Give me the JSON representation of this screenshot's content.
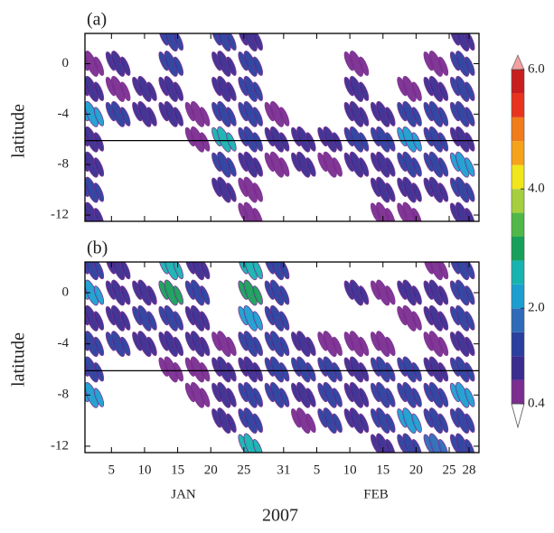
{
  "chart_data": {
    "type": "contour",
    "xlabel": "2007",
    "ylabel": "latitude",
    "xlim": [
      1,
      60.5
    ],
    "ylim": [
      -12.5,
      2.4
    ],
    "xticks": [
      5,
      10,
      15,
      20,
      25,
      31,
      {
        "value": 36,
        "label": "5"
      },
      {
        "value": 41,
        "label": "10"
      },
      {
        "value": 46,
        "label": "15"
      },
      {
        "value": 51,
        "label": "20"
      },
      {
        "value": 56,
        "label": "25"
      },
      {
        "value": 59,
        "label": "28"
      }
    ],
    "yticks": [
      0,
      -4,
      -8,
      -12
    ],
    "months": [
      "JAN",
      "FEB"
    ],
    "hline": -6.1,
    "x_centers": [
      2,
      6,
      10,
      14,
      18,
      22,
      26,
      30,
      34,
      38,
      42,
      46,
      50,
      54,
      58
    ],
    "y_centers": [
      2,
      0,
      -2,
      -4,
      -6,
      -8,
      -10,
      -12
    ],
    "panels": [
      {
        "label": "(a)",
        "z": [
          [
            0,
            0,
            0,
            1.5,
            0,
            1.5,
            1.0,
            0,
            0,
            0,
            0,
            0,
            0,
            0,
            1.0
          ],
          [
            0.5,
            0.8,
            0,
            1.5,
            0,
            1.0,
            1.2,
            0,
            0,
            0,
            0.6,
            0,
            0,
            0.6,
            1.5
          ],
          [
            1.0,
            0.6,
            0.8,
            1.0,
            0,
            0.8,
            1.5,
            0,
            0,
            0,
            0.8,
            0,
            0.6,
            0.8,
            1.2
          ],
          [
            2.0,
            1.2,
            1.0,
            0.8,
            0.6,
            1.2,
            1.5,
            0.6,
            0,
            0,
            1.0,
            0.8,
            1.2,
            1.5,
            1.5
          ],
          [
            0.8,
            0,
            0,
            0,
            0.5,
            2.5,
            1.2,
            1.0,
            1.0,
            0.8,
            1.2,
            1.5,
            2.0,
            1.5,
            1.0
          ],
          [
            1.0,
            0,
            0,
            0,
            0,
            1.5,
            0.8,
            0.6,
            0.8,
            0.6,
            1.0,
            1.0,
            1.5,
            1.2,
            2.0
          ],
          [
            1.2,
            0,
            0,
            0,
            0,
            0.8,
            0.6,
            0,
            0,
            0,
            0,
            0.8,
            0.8,
            1.0,
            1.5
          ],
          [
            0.8,
            0,
            0,
            0,
            0,
            0,
            0.6,
            0,
            0,
            0,
            0,
            0.5,
            0.6,
            0,
            1.0
          ]
        ]
      },
      {
        "label": "(b)",
        "z": [
          [
            1.5,
            0.8,
            0,
            2.5,
            1.0,
            0,
            2.5,
            1.5,
            0,
            0,
            0,
            0,
            0,
            0.6,
            1.5
          ],
          [
            2.0,
            1.0,
            0.8,
            3.0,
            1.2,
            0,
            3.0,
            1.5,
            0,
            0,
            0.8,
            0.6,
            0.8,
            1.0,
            1.5
          ],
          [
            1.0,
            1.0,
            1.2,
            1.5,
            1.0,
            0,
            2.0,
            1.5,
            0,
            0,
            0,
            0,
            0.6,
            0.8,
            1.2
          ],
          [
            1.2,
            1.2,
            1.0,
            1.0,
            0.8,
            0.6,
            1.2,
            1.2,
            0.8,
            0.6,
            0.6,
            0.5,
            0,
            0.6,
            1.0
          ],
          [
            1.5,
            0,
            0,
            0.6,
            0.6,
            0.8,
            1.0,
            1.5,
            1.5,
            1.2,
            1.0,
            1.5,
            1.2,
            1.0,
            1.5
          ],
          [
            2.0,
            0,
            0,
            0,
            0.6,
            1.0,
            1.5,
            1.2,
            1.0,
            1.2,
            1.0,
            1.5,
            1.5,
            1.2,
            2.0
          ],
          [
            0,
            0,
            0,
            0,
            0,
            1.0,
            1.5,
            0,
            0.6,
            1.2,
            0.8,
            1.2,
            2.0,
            1.5,
            1.5
          ],
          [
            0,
            0,
            0,
            0,
            0,
            0,
            2.5,
            0,
            0,
            0,
            0,
            1.0,
            1.5,
            1.8,
            1.5
          ]
        ]
      }
    ],
    "colorbar": {
      "levels": [
        0.4,
        0.8,
        1.2,
        1.6,
        2.0,
        2.4,
        2.8,
        3.2,
        3.6,
        4.0,
        4.4,
        4.8,
        5.2,
        5.6,
        6.0
      ],
      "colors": [
        "#7b2d90",
        "#3b2c8f",
        "#2a3f9e",
        "#2f6bb8",
        "#1c9fd0",
        "#17b3b0",
        "#18a05a",
        "#4fb848",
        "#a5cf3f",
        "#f1e51c",
        "#f5a31a",
        "#f07c1a",
        "#e8341f",
        "#c81e1e"
      ],
      "over_color": "#f2a0a0",
      "under_color": "#ffffff",
      "ticks": [
        0.4,
        {
          "value": 2,
          "label": "2.0"
        },
        {
          "value": 4,
          "label": "4.0"
        },
        {
          "value": 6,
          "label": "6.0"
        }
      ]
    }
  }
}
